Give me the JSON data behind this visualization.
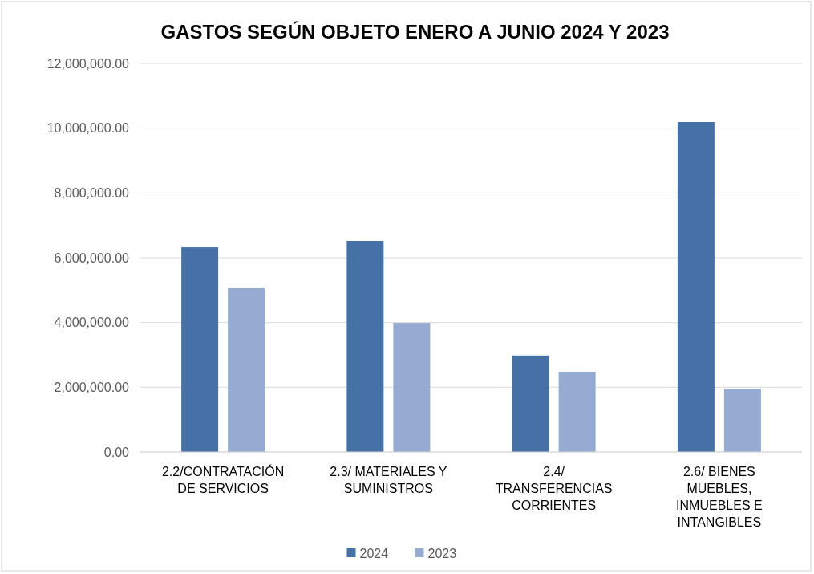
{
  "chart_data": {
    "type": "bar",
    "title": "GASTOS SEGÚN OBJETO ENERO A JUNIO 2024 Y 2023",
    "categories": [
      "2.2/CONTRATACIÓN DE SERVICIOS",
      "2.3/ MATERIALES Y SUMINISTROS",
      "2.4/ TRANSFERENCIAS CORRIENTES",
      "2.6/ BIENES MUEBLES, INMUEBLES E INTANGIBLES"
    ],
    "series": [
      {
        "name": "2024",
        "color": "#4571a6",
        "values": [
          6320000,
          6520000,
          2980000,
          10190000
        ]
      },
      {
        "name": "2023",
        "color": "#95abd2",
        "values": [
          5060000,
          3990000,
          2480000,
          1960000
        ]
      }
    ],
    "ylim": [
      0,
      12000000
    ],
    "yticks": [
      {
        "value": 0,
        "label": "0.00"
      },
      {
        "value": 2000000,
        "label": "2,000,000.00"
      },
      {
        "value": 4000000,
        "label": "4,000,000.00"
      },
      {
        "value": 6000000,
        "label": "6,000,000.00"
      },
      {
        "value": 8000000,
        "label": "8,000,000.00"
      },
      {
        "value": 10000000,
        "label": "10,000,000.00"
      },
      {
        "value": 12000000,
        "label": "12,000,000.00"
      }
    ],
    "grid": "y",
    "legend": "bottom"
  }
}
